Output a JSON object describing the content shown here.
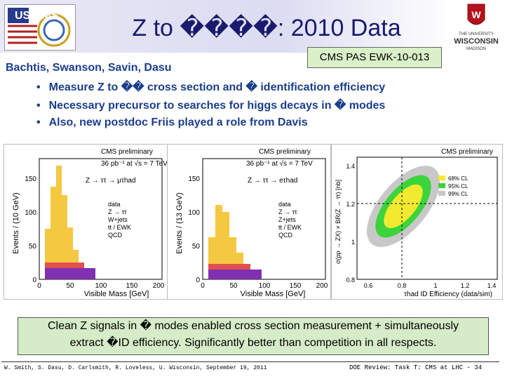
{
  "header": {
    "logo_left_text": "US CMS",
    "title": "Z to ����: 2010 Data",
    "pas_label": "CMS PAS EWK-10-013",
    "logo_right_top": "THE UNIVERSITY",
    "logo_right_name": "WISCONSIN",
    "logo_right_bottom": "MADISON",
    "accent": "#1a3e8c",
    "title_color": "#1a1a6e"
  },
  "authors": "Bachtis, Swanson, Savin, Dasu",
  "bullets": [
    "Measure Z to �� cross section and � identification efficiency",
    "Necessary precursor to searches for higgs decays in � modes",
    "Also, new postdoc Friis played a role from Davis"
  ],
  "plots": {
    "left": {
      "title": "CMS preliminary",
      "lumi": "36 pb⁻¹ at √s = 7 TeV",
      "channel": "Z → ττ → μτhad",
      "ylabel": "Events / (10 GeV)",
      "xlabel": "Visible Mass [GeV]",
      "yticks": [
        "0",
        "50",
        "100",
        "150"
      ],
      "xticks": [
        "0",
        "50",
        "100",
        "150",
        "200"
      ],
      "legend": [
        "data",
        "Z → ττ",
        "W+jets",
        "tt / EWK",
        "QCD"
      ]
    },
    "middle": {
      "title": "CMS preliminary",
      "lumi": "36 pb⁻¹ at √s = 7 TeV",
      "channel": "Z → ττ → eτhad",
      "ylabel": "Events / (13 GeV)",
      "xlabel": "Visible Mass [GeV]",
      "yticks": [
        "0",
        "50",
        "100",
        "150"
      ],
      "xticks": [
        "0",
        "50",
        "100",
        "150",
        "200"
      ],
      "legend": [
        "data",
        "Z → ττ",
        "Z+jets",
        "tt / EWK",
        "QCD"
      ]
    },
    "right": {
      "title": "CMS preliminary",
      "ylabel": "σ(pp → ZX) × BR(Z → ττ) [nb]",
      "xlabel": "τhad ID Efficiency (data/sim)",
      "yticks": [
        "0.8",
        "1",
        "1.2",
        "1.4"
      ],
      "xticks": [
        "0.6",
        "0.8",
        "1",
        "1.2",
        "1.4"
      ],
      "legend": [
        "68% CL",
        "95% CL",
        "99% CL"
      ]
    }
  },
  "callout": {
    "line1": "Clean Z signals in � modes enabled cross section measurement + simultaneously",
    "line2": "extract �ID efficiency. Significantly better than competition in all respects."
  },
  "footer": {
    "left": "W. Smith, S. Dasu, D. Carlsmith, R. Loveless, U. Wisconsin, September 19, 2011",
    "right": "DOE Review: Task T: CMS at LHC - 34"
  }
}
